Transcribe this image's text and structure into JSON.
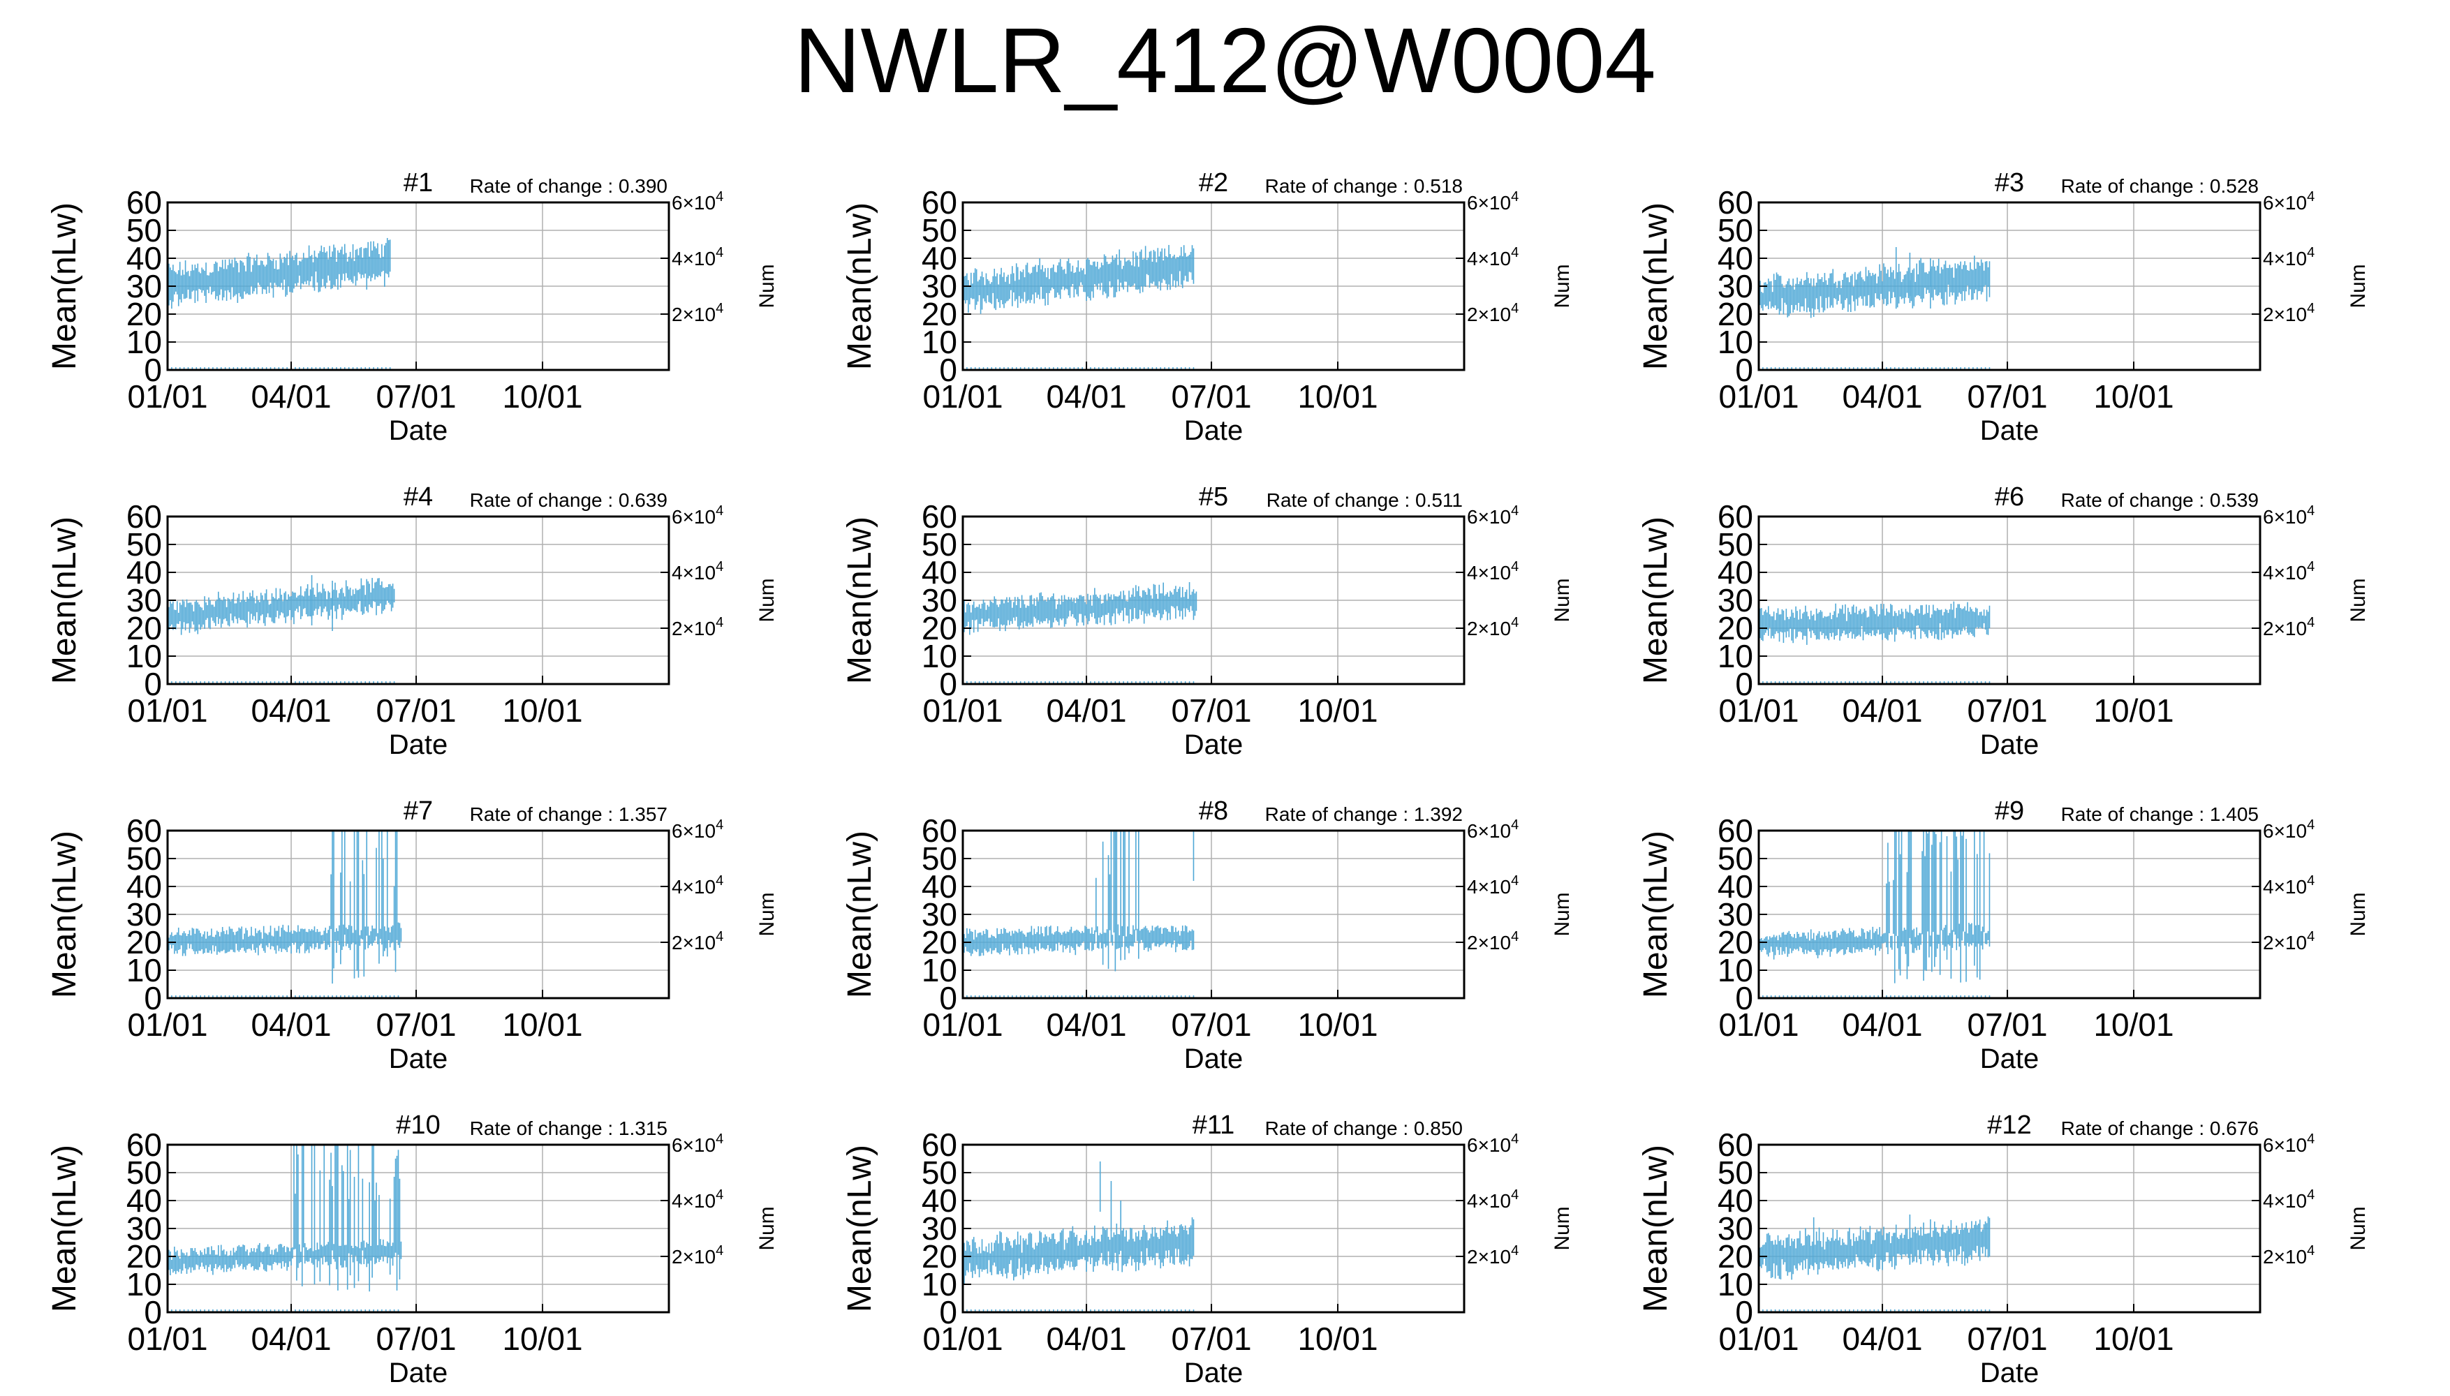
{
  "page": {
    "title": "NWLR_412@W0004"
  },
  "common": {
    "xlabel": "Date",
    "ylabel": "Mean(nLw)",
    "y2label": "Num",
    "rate_prefix": "Rate of change : ",
    "x_tick_labels": [
      "01/01",
      "04/01",
      "07/01",
      "10/01"
    ],
    "x_ticks_day": [
      0,
      90,
      181,
      273
    ],
    "xlim_day": [
      0,
      365
    ],
    "y_ticks": [
      0,
      10,
      20,
      30,
      40,
      50,
      60
    ],
    "ylim": [
      0,
      60
    ],
    "y2_ticks": [
      20000,
      40000,
      60000
    ],
    "y2_tick_base": [
      "2×10",
      "4×10",
      "6×10"
    ],
    "y2_tick_exp": "4",
    "y2lim": [
      0,
      60000
    ],
    "grid": true,
    "series_color": "#4fa8d6",
    "axis_color": "#000000",
    "grid_color": "#b0b0b0"
  },
  "chart_data": [
    {
      "type": "scatter",
      "title": "#1",
      "rate": "0.390",
      "data_end_day": 162,
      "mean_start": 30,
      "mean_end": 39,
      "spread": 5,
      "spikes": []
    },
    {
      "type": "scatter",
      "title": "#2",
      "rate": "0.518",
      "data_end_day": 168,
      "mean_start": 28,
      "mean_end": 37,
      "spread": 5,
      "spikes": []
    },
    {
      "type": "scatter",
      "title": "#3",
      "rate": "0.528",
      "data_end_day": 168,
      "mean_start": 26,
      "mean_end": 33,
      "spread": 5,
      "spikes": [
        [
          100,
          44
        ],
        [
          110,
          42
        ],
        [
          125,
          40
        ]
      ]
    },
    {
      "type": "scatter",
      "title": "#4",
      "rate": "0.639",
      "data_end_day": 165,
      "mean_start": 24,
      "mean_end": 32,
      "spread": 4,
      "spikes": [
        [
          105,
          39
        ],
        [
          120,
          37
        ]
      ]
    },
    {
      "type": "scatter",
      "title": "#5",
      "rate": "0.511",
      "data_end_day": 170,
      "mean_start": 24,
      "mean_end": 30,
      "spread": 4,
      "spikes": []
    },
    {
      "type": "scatter",
      "title": "#6",
      "rate": "0.539",
      "data_end_day": 168,
      "mean_start": 21,
      "mean_end": 23,
      "spread": 4,
      "spikes": []
    },
    {
      "type": "scatter",
      "title": "#7",
      "rate": "1.357",
      "data_end_day": 170,
      "mean_start": 20,
      "mean_end": 22,
      "spread": 3,
      "blowup_day": 118,
      "spikes": []
    },
    {
      "type": "scatter",
      "title": "#8",
      "rate": "1.392",
      "data_end_day": 168,
      "mean_start": 20,
      "mean_end": 22,
      "spread": 3,
      "blowup_day": 95,
      "blowup_end": 130,
      "spikes": [
        [
          168,
          60
        ]
      ]
    },
    {
      "type": "scatter",
      "title": "#9",
      "rate": "1.405",
      "data_end_day": 168,
      "mean_start": 19,
      "mean_end": 22,
      "spread": 3,
      "blowup_day": 92,
      "spikes": []
    },
    {
      "type": "scatter",
      "title": "#10",
      "rate": "1.315",
      "data_end_day": 170,
      "mean_start": 18,
      "mean_end": 22,
      "spread": 3,
      "blowup_day": 92,
      "spikes": []
    },
    {
      "type": "scatter",
      "title": "#11",
      "rate": "0.850",
      "data_end_day": 168,
      "mean_start": 19,
      "mean_end": 25,
      "spread": 5,
      "spikes": [
        [
          100,
          54
        ],
        [
          108,
          47
        ],
        [
          115,
          40
        ]
      ]
    },
    {
      "type": "scatter",
      "title": "#12",
      "rate": "0.676",
      "data_end_day": 168,
      "mean_start": 20,
      "mean_end": 26,
      "spread": 5,
      "spikes": [
        [
          110,
          35
        ],
        [
          40,
          34
        ]
      ]
    }
  ]
}
